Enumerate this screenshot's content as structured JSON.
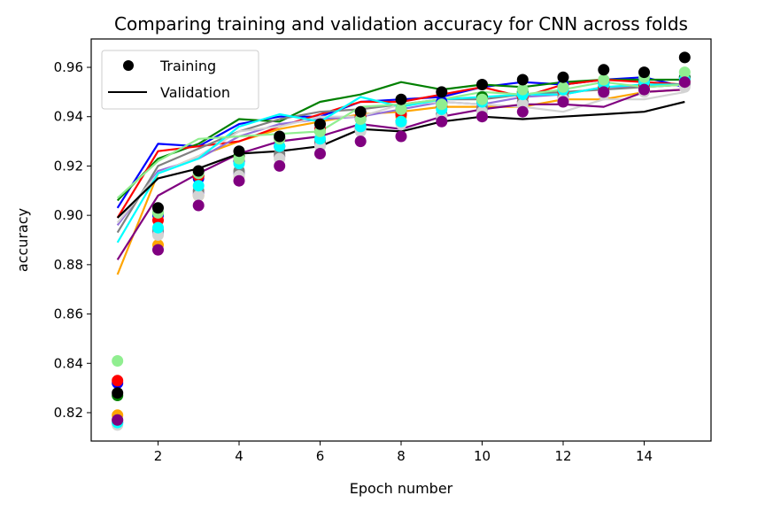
{
  "chart_data": {
    "type": "line",
    "title": "Comparing training and validation accuracy for CNN across folds",
    "xlabel": "Epoch number",
    "ylabel": "accuracy",
    "xlim": [
      0.35,
      15.65
    ],
    "ylim": [
      0.8085,
      0.9715
    ],
    "xticks": [
      2,
      4,
      6,
      8,
      10,
      12,
      14
    ],
    "yticks": [
      0.82,
      0.84,
      0.86,
      0.88,
      0.9,
      0.92,
      0.94,
      0.96
    ],
    "ytick_labels": [
      "0.82",
      "0.84",
      "0.86",
      "0.88",
      "0.90",
      "0.92",
      "0.94",
      "0.96"
    ],
    "grid": false,
    "legend": {
      "placement": "top-left",
      "entries": [
        {
          "label": "Training",
          "marker": "circle",
          "color": "#000000"
        },
        {
          "label": "Validation",
          "marker": "line",
          "color": "#000000"
        }
      ]
    },
    "epochs": [
      1,
      2,
      3,
      4,
      5,
      6,
      7,
      8,
      9,
      10,
      11,
      12,
      13,
      14,
      15
    ],
    "folds": [
      {
        "color": "#0000ff",
        "training": [
          0.832,
          0.9,
          0.915,
          0.922,
          0.928,
          0.935,
          0.939,
          0.941,
          0.946,
          0.948,
          0.95,
          0.953,
          0.954,
          0.955,
          0.956
        ],
        "validation": [
          0.903,
          0.929,
          0.928,
          0.937,
          0.94,
          0.94,
          0.946,
          0.947,
          0.948,
          0.952,
          0.954,
          0.953,
          0.955,
          0.956,
          0.952
        ]
      },
      {
        "color": "#ffa500",
        "training": [
          0.819,
          0.888,
          0.908,
          0.916,
          0.924,
          0.93,
          0.936,
          0.94,
          0.944,
          0.946,
          0.948,
          0.95,
          0.952,
          0.953,
          0.954
        ],
        "validation": [
          0.876,
          0.917,
          0.924,
          0.93,
          0.935,
          0.938,
          0.941,
          0.942,
          0.944,
          0.944,
          0.944,
          0.947,
          0.947,
          0.95,
          0.951
        ]
      },
      {
        "color": "#008000",
        "training": [
          0.827,
          0.901,
          0.916,
          0.924,
          0.931,
          0.934,
          0.94,
          0.943,
          0.945,
          0.948,
          0.95,
          0.951,
          0.952,
          0.954,
          0.956
        ],
        "validation": [
          0.906,
          0.923,
          0.929,
          0.939,
          0.938,
          0.946,
          0.949,
          0.954,
          0.951,
          0.953,
          0.952,
          0.954,
          0.955,
          0.955,
          0.955
        ]
      },
      {
        "color": "#ff0000",
        "training": [
          0.833,
          0.898,
          0.916,
          0.923,
          0.931,
          0.935,
          0.94,
          0.941,
          0.944,
          0.946,
          0.948,
          0.95,
          0.952,
          0.953,
          0.955
        ],
        "validation": [
          0.899,
          0.926,
          0.928,
          0.93,
          0.936,
          0.941,
          0.946,
          0.946,
          0.949,
          0.952,
          0.948,
          0.953,
          0.955,
          0.954,
          0.953
        ]
      },
      {
        "color": "#9370db",
        "training": [
          0.816,
          0.893,
          0.909,
          0.917,
          0.924,
          0.929,
          0.935,
          0.938,
          0.941,
          0.944,
          0.946,
          0.948,
          0.95,
          0.951,
          0.953
        ],
        "validation": [
          0.896,
          0.918,
          0.923,
          0.932,
          0.937,
          0.939,
          0.94,
          0.943,
          0.946,
          0.945,
          0.948,
          0.949,
          0.952,
          0.952,
          0.953
        ]
      },
      {
        "color": "#808080",
        "training": [
          0.817,
          0.894,
          0.91,
          0.918,
          0.925,
          0.93,
          0.935,
          0.938,
          0.941,
          0.943,
          0.946,
          0.948,
          0.95,
          0.951,
          0.953
        ],
        "validation": [
          0.893,
          0.92,
          0.927,
          0.934,
          0.939,
          0.942,
          0.943,
          0.945,
          0.947,
          0.947,
          0.949,
          0.95,
          0.951,
          0.952,
          0.953
        ]
      },
      {
        "color": "#d3d3d3",
        "training": [
          0.815,
          0.892,
          0.908,
          0.916,
          0.923,
          0.928,
          0.934,
          0.937,
          0.94,
          0.942,
          0.945,
          0.947,
          0.949,
          0.95,
          0.952
        ],
        "validation": [
          0.897,
          0.917,
          0.924,
          0.934,
          0.936,
          0.94,
          0.94,
          0.945,
          0.946,
          0.945,
          0.944,
          0.942,
          0.947,
          0.947,
          0.95
        ]
      },
      {
        "color": "#00ffff",
        "training": [
          0.816,
          0.895,
          0.912,
          0.921,
          0.928,
          0.931,
          0.936,
          0.938,
          0.943,
          0.946,
          0.949,
          0.951,
          0.953,
          0.954,
          0.955
        ],
        "validation": [
          0.889,
          0.917,
          0.923,
          0.936,
          0.941,
          0.938,
          0.948,
          0.944,
          0.947,
          0.948,
          0.949,
          0.949,
          0.952,
          0.953,
          0.953
        ]
      },
      {
        "color": "#90ee90",
        "training": [
          0.841,
          0.901,
          0.917,
          0.923,
          0.931,
          0.934,
          0.939,
          0.943,
          0.945,
          0.947,
          0.951,
          0.952,
          0.955,
          0.956,
          0.958
        ],
        "validation": [
          0.907,
          0.922,
          0.931,
          0.932,
          0.933,
          0.934,
          0.944,
          0.945,
          0.947,
          0.95,
          0.949,
          0.951,
          0.954,
          0.952,
          0.953
        ]
      },
      {
        "color": "#800080",
        "training": [
          0.817,
          0.886,
          0.904,
          0.914,
          0.92,
          0.925,
          0.93,
          0.932,
          0.938,
          0.94,
          0.942,
          0.946,
          0.95,
          0.951,
          0.954
        ],
        "validation": [
          0.882,
          0.908,
          0.917,
          0.925,
          0.93,
          0.932,
          0.937,
          0.935,
          0.94,
          0.943,
          0.945,
          0.945,
          0.944,
          0.95,
          0.951
        ]
      },
      {
        "color": "#000000",
        "training": [
          0.828,
          0.903,
          0.918,
          0.926,
          0.932,
          0.937,
          0.942,
          0.947,
          0.95,
          0.953,
          0.955,
          0.956,
          0.959,
          0.958,
          0.964
        ],
        "validation": [
          0.899,
          0.915,
          0.919,
          0.925,
          0.926,
          0.928,
          0.935,
          0.934,
          0.938,
          0.94,
          0.939,
          0.94,
          0.941,
          0.942,
          0.946
        ]
      }
    ]
  }
}
